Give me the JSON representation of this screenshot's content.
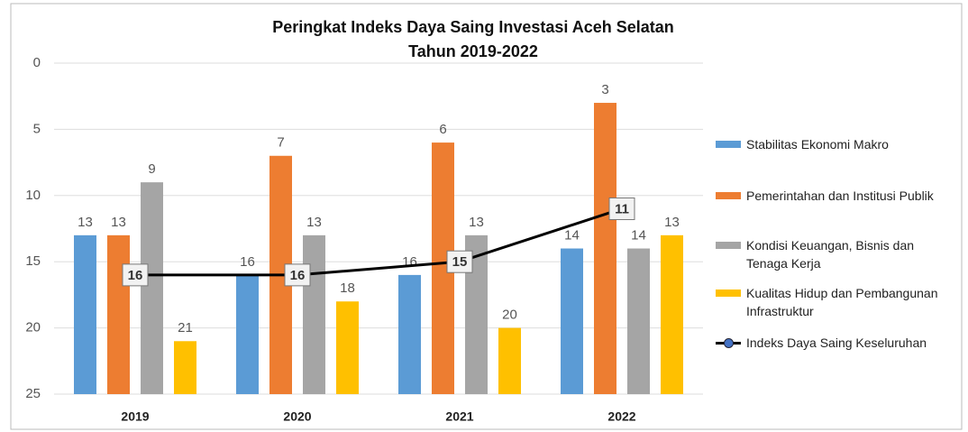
{
  "chart_data": {
    "type": "bar",
    "title": [
      "Peringkat Indeks Daya Saing Investasi Aceh Selatan",
      "Tahun 2019-2022"
    ],
    "categories": [
      "2019",
      "2020",
      "2021",
      "2022"
    ],
    "series": [
      {
        "name": "Stabilitas Ekonomi Makro",
        "color": "#5b9bd5",
        "values": [
          13,
          16,
          16,
          14
        ]
      },
      {
        "name": "Pemerintahan dan Institusi Publik",
        "color": "#ed7d31",
        "values": [
          13,
          7,
          6,
          3
        ]
      },
      {
        "name": "Kondisi Keuangan, Bisnis dan Tenaga Kerja",
        "color": "#a5a5a5",
        "values": [
          9,
          13,
          13,
          14
        ]
      },
      {
        "name": "Kualitas Hidup dan Pembangunan Infrastruktur",
        "color": "#ffc000",
        "values": [
          21,
          18,
          20,
          13
        ]
      },
      {
        "name": "Indeks Daya Saing Keseluruhan",
        "type": "line",
        "color": "#000000",
        "marker_color": "#4472c4",
        "values": [
          16,
          16,
          15,
          11
        ]
      }
    ],
    "ylim": [
      0,
      25
    ],
    "y_inverted": true,
    "yticks": [
      0,
      5,
      10,
      15,
      20,
      25
    ],
    "grid": true,
    "legend": "right"
  }
}
